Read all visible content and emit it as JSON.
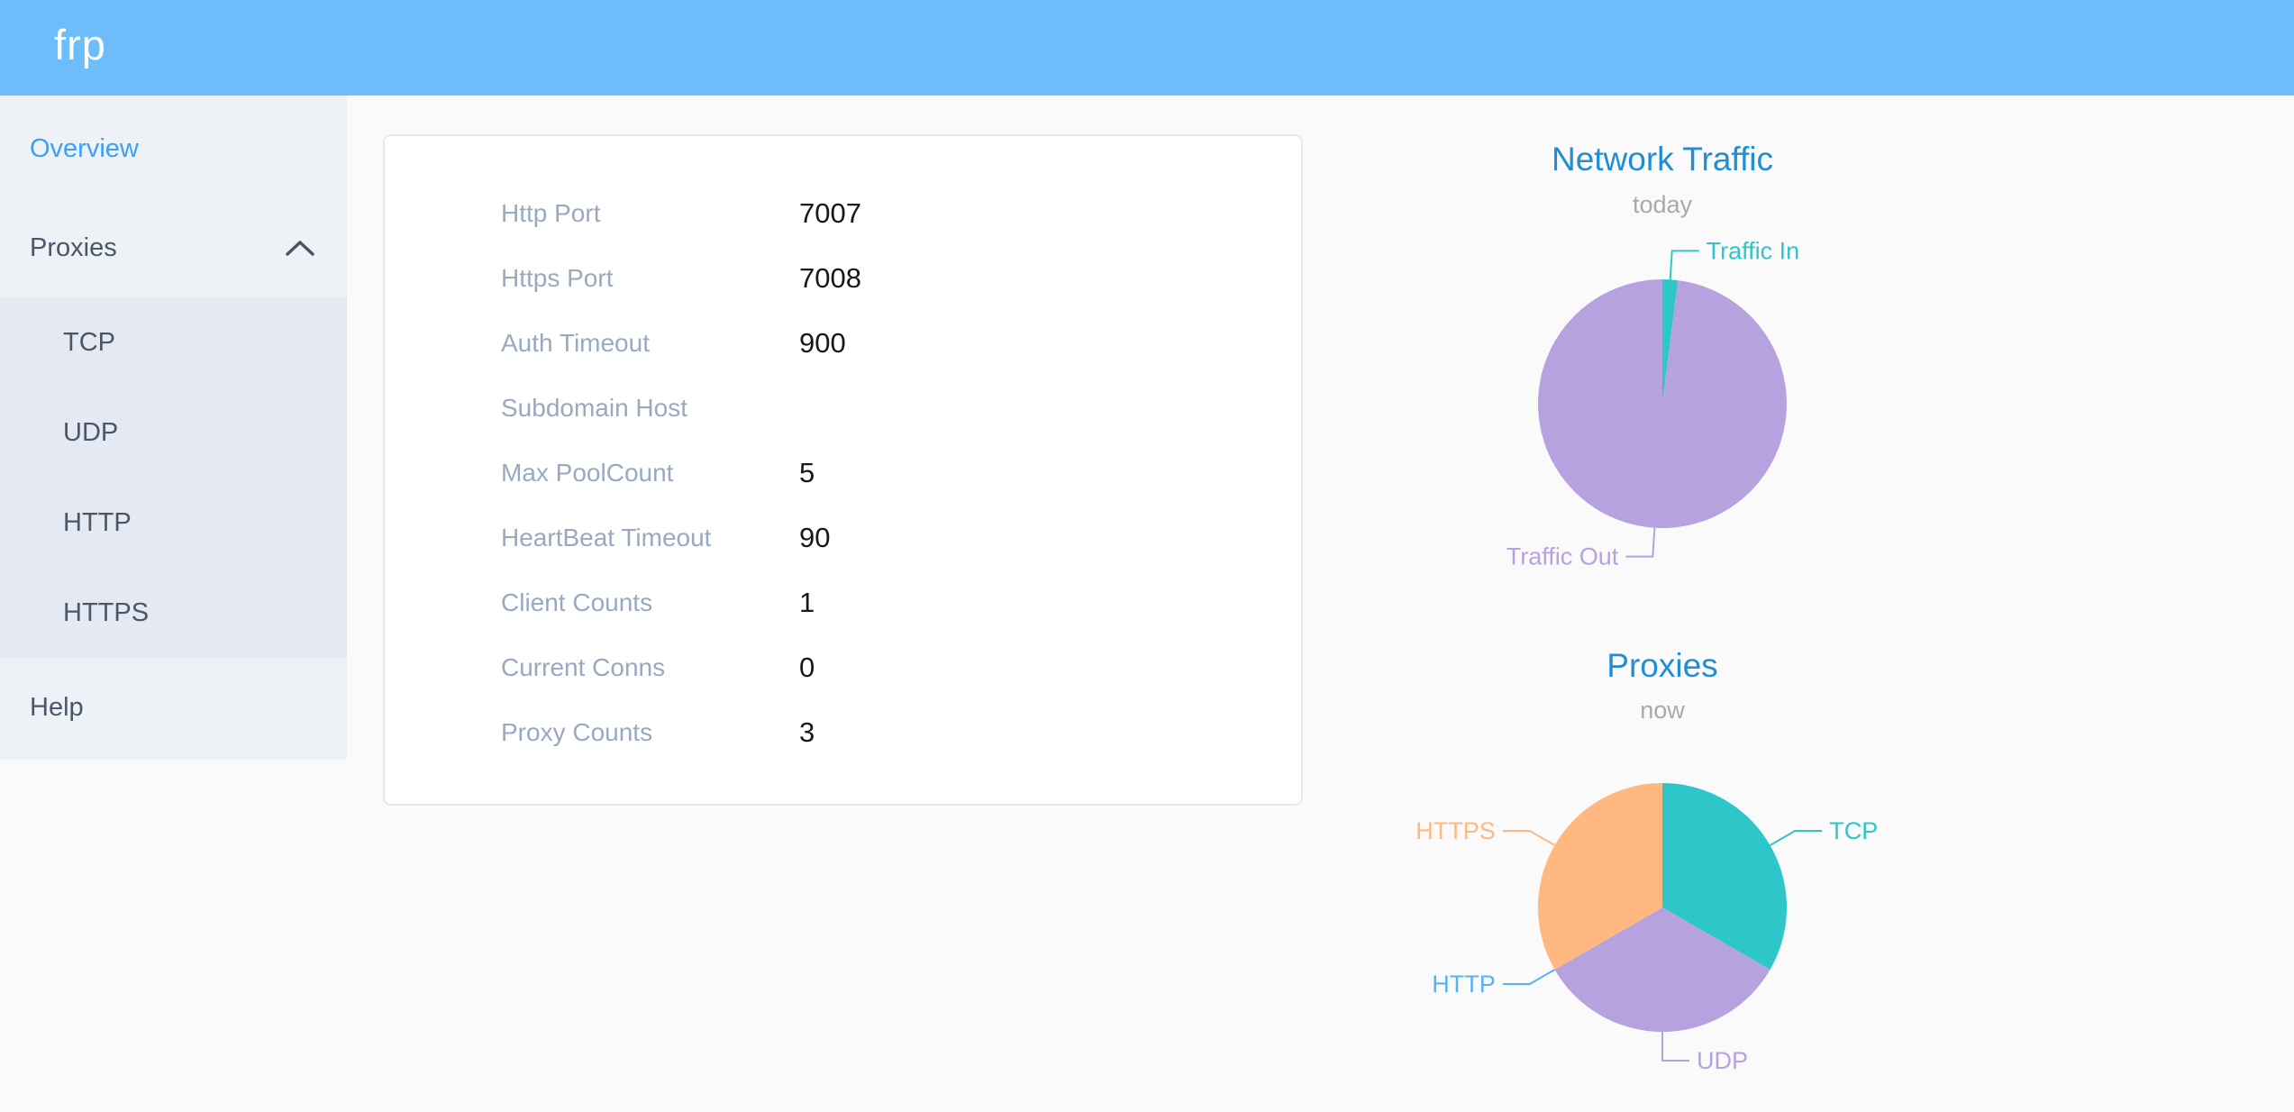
{
  "header": {
    "logo": "frp"
  },
  "colors": {
    "header_bg": "#6cbdfa",
    "active_menu": "#3aa0f8",
    "chart_title": "#1f8ed5",
    "teal": "#2ec7c9",
    "purple": "#b6a2de",
    "blue": "#5ab1ef",
    "orange": "#ffb980"
  },
  "sidebar": {
    "items": [
      {
        "label": "Overview",
        "active": true
      },
      {
        "label": "Proxies",
        "expanded": true
      },
      {
        "label": "Help"
      }
    ],
    "proxies_submenu": [
      "TCP",
      "UDP",
      "HTTP",
      "HTTPS"
    ]
  },
  "server_info": {
    "rows": [
      {
        "label": "Http Port",
        "value": "7007"
      },
      {
        "label": "Https Port",
        "value": "7008"
      },
      {
        "label": "Auth Timeout",
        "value": "900"
      },
      {
        "label": "Subdomain Host",
        "value": ""
      },
      {
        "label": "Max PoolCount",
        "value": "5"
      },
      {
        "label": "HeartBeat Timeout",
        "value": "90"
      },
      {
        "label": "Client Counts",
        "value": "1"
      },
      {
        "label": "Current Conns",
        "value": "0"
      },
      {
        "label": "Proxy Counts",
        "value": "3"
      }
    ]
  },
  "chart_data": [
    {
      "type": "pie",
      "title": "Network Traffic",
      "subtitle": "today",
      "labels": [
        "Traffic In",
        "Traffic Out"
      ],
      "values": [
        2,
        98
      ],
      "colors": [
        "#2ec7c9",
        "#b6a2de"
      ],
      "legend_position": "labels-with-leader-lines"
    },
    {
      "type": "pie",
      "title": "Proxies",
      "subtitle": "now",
      "labels": [
        "TCP",
        "UDP",
        "HTTP",
        "HTTPS"
      ],
      "values": [
        1,
        1,
        0,
        1
      ],
      "colors": [
        "#2ec7c9",
        "#b6a2de",
        "#5ab1ef",
        "#ffb980"
      ],
      "legend_position": "labels-with-leader-lines"
    }
  ]
}
